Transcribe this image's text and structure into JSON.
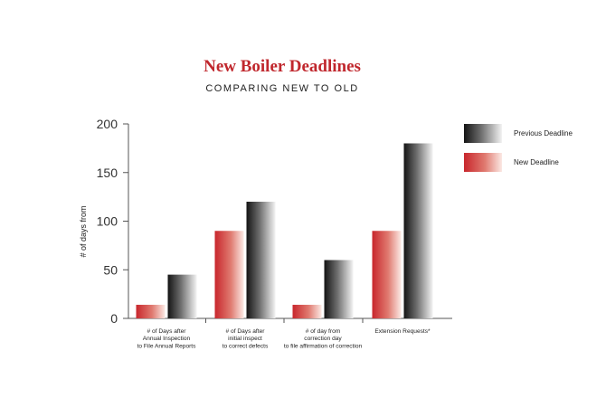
{
  "chart_data": {
    "type": "bar",
    "title": "New Boiler Deadlines",
    "subtitle": "COMPARING NEW TO OLD",
    "ylabel": "# of days from",
    "xlabel": "",
    "ylim": [
      0,
      200
    ],
    "yticks": [
      0,
      50,
      100,
      150,
      200
    ],
    "categories": [
      [
        "# of Days after",
        "Annual Inspection",
        "to File Annual Reports"
      ],
      [
        "# of Days after",
        "initial inspect",
        "to correct defects"
      ],
      [
        "# of day from",
        "correction day",
        "to file affirmation of correction"
      ],
      [
        "Extension Requests*"
      ]
    ],
    "series": [
      {
        "name": "New Deadline",
        "values": [
          14,
          90,
          14,
          90
        ],
        "color": "#c8262c"
      },
      {
        "name": "Previous Deadline",
        "values": [
          45,
          120,
          60,
          180
        ],
        "color": "#1a1a1a"
      }
    ],
    "legend_order": [
      1,
      0
    ],
    "legend_placement": "top-right",
    "grid": false
  }
}
